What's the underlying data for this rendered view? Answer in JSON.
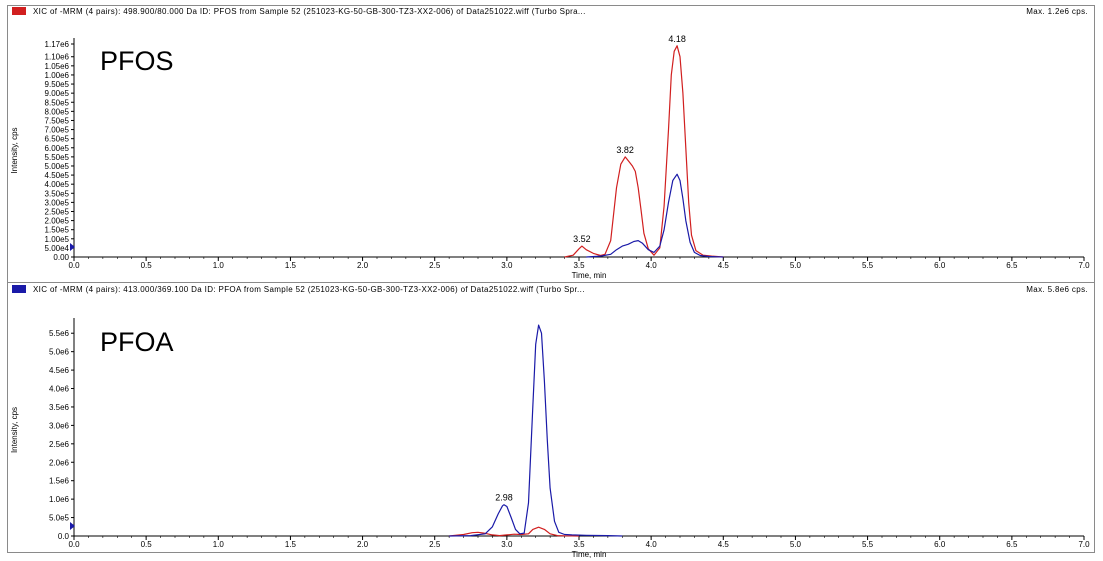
{
  "colors": {
    "red": "#d11f1f",
    "blue": "#1a1aa8",
    "axis": "#000000"
  },
  "chart_data": [
    {
      "type": "line",
      "header": "XIC of -MRM (4 pairs): 498.900/80.000 Da ID: PFOS from Sample 52 (251023-KG-50-GB-300-TZ3-XX2-006) of Data251022.wiff (Turbo Spra...",
      "header_color": "#d11f1f",
      "max_label": "Max. 1.2e6 cps.",
      "title": "PFOS",
      "xlabel": "Time, min",
      "ylabel": "Intensity, cps",
      "xlim": [
        0.0,
        7.0
      ],
      "ylim": [
        0,
        1170000
      ],
      "x_ticks": [
        "0.0",
        "0.5",
        "1.0",
        "1.5",
        "2.0",
        "2.5",
        "3.0",
        "3.5",
        "4.0",
        "4.5",
        "5.0",
        "5.5",
        "6.0",
        "6.5",
        "7.0"
      ],
      "y_ticks": [
        "0.00",
        "5.00e4",
        "1.00e5",
        "1.50e5",
        "2.00e5",
        "2.50e5",
        "3.00e5",
        "3.50e5",
        "4.00e5",
        "4.50e5",
        "5.00e5",
        "5.50e5",
        "6.00e5",
        "6.50e5",
        "7.00e5",
        "7.50e5",
        "8.00e5",
        "8.50e5",
        "9.00e5",
        "9.50e5",
        "1.00e6",
        "1.05e6",
        "1.10e6",
        "1.17e6"
      ],
      "y_tick_values": [
        0,
        50000,
        100000,
        150000,
        200000,
        250000,
        300000,
        350000,
        400000,
        450000,
        500000,
        550000,
        600000,
        650000,
        700000,
        750000,
        800000,
        850000,
        900000,
        950000,
        1000000,
        1050000,
        1100000,
        1170000
      ],
      "series": [
        {
          "color": "#d11f1f",
          "x": [
            3.4,
            3.46,
            3.5,
            3.52,
            3.55,
            3.6,
            3.65,
            3.68,
            3.72,
            3.76,
            3.79,
            3.82,
            3.85,
            3.87,
            3.89,
            3.91,
            3.93,
            3.95,
            3.98,
            4.02,
            4.06,
            4.09,
            4.12,
            4.14,
            4.16,
            4.18,
            4.2,
            4.22,
            4.24,
            4.26,
            4.28,
            4.31,
            4.36,
            4.42,
            4.5
          ],
          "y": [
            0,
            10000,
            45000,
            60000,
            40000,
            20000,
            8000,
            15000,
            90000,
            380000,
            510000,
            550000,
            520000,
            500000,
            470000,
            380000,
            260000,
            130000,
            45000,
            10000,
            50000,
            280000,
            700000,
            1000000,
            1130000,
            1160000,
            1100000,
            900000,
            600000,
            300000,
            120000,
            35000,
            10000,
            5000,
            0
          ]
        },
        {
          "color": "#1a1aa8",
          "x": [
            3.55,
            3.65,
            3.72,
            3.76,
            3.8,
            3.84,
            3.88,
            3.91,
            3.94,
            3.98,
            4.02,
            4.06,
            4.09,
            4.12,
            4.15,
            4.18,
            4.2,
            4.22,
            4.24,
            4.27,
            4.3,
            4.34,
            4.4,
            4.46,
            4.5
          ],
          "y": [
            0,
            5000,
            15000,
            40000,
            60000,
            70000,
            85000,
            90000,
            75000,
            40000,
            25000,
            60000,
            150000,
            300000,
            420000,
            455000,
            420000,
            320000,
            200000,
            80000,
            25000,
            8000,
            3000,
            1000,
            0
          ]
        }
      ],
      "annotations": [
        {
          "text": "3.52",
          "x": 3.52,
          "y": 60000
        },
        {
          "text": "3.82",
          "x": 3.82,
          "y": 550000
        },
        {
          "text": "4.18",
          "x": 4.18,
          "y": 1160000
        }
      ]
    },
    {
      "type": "line",
      "header": "XIC of -MRM (4 pairs): 413.000/369.100 Da ID: PFOA from Sample 52 (251023-KG-50-GB-300-TZ3-XX2-006) of Data251022.wiff (Turbo Spr...",
      "header_color": "#1a1aa8",
      "max_label": "Max. 5.8e6 cps.",
      "title": "PFOA",
      "xlabel": "Time, min",
      "ylabel": "Intensity, cps",
      "xlim": [
        0.0,
        7.0
      ],
      "ylim": [
        0,
        5750000
      ],
      "x_ticks": [
        "0.0",
        "0.5",
        "1.0",
        "1.5",
        "2.0",
        "2.5",
        "3.0",
        "3.5",
        "4.0",
        "4.5",
        "5.0",
        "5.5",
        "6.0",
        "6.5",
        "7.0"
      ],
      "y_ticks": [
        "0.0",
        "5.0e5",
        "1.0e6",
        "1.5e6",
        "2.0e6",
        "2.5e6",
        "3.0e6",
        "3.5e6",
        "4.0e6",
        "4.5e6",
        "5.0e6",
        "5.5e6"
      ],
      "y_tick_values": [
        0,
        500000,
        1000000,
        1500000,
        2000000,
        2500000,
        3000000,
        3500000,
        4000000,
        4500000,
        5000000,
        5500000
      ],
      "series": [
        {
          "color": "#d11f1f",
          "x": [
            2.6,
            2.7,
            2.76,
            2.8,
            2.84,
            2.9,
            2.95,
            3.0,
            3.05,
            3.1,
            3.15,
            3.18,
            3.22,
            3.26,
            3.3,
            3.35,
            3.4,
            3.5
          ],
          "y": [
            0,
            40000,
            90000,
            100000,
            80000,
            30000,
            10000,
            30000,
            50000,
            40000,
            60000,
            180000,
            240000,
            180000,
            60000,
            10000,
            5000,
            0
          ]
        },
        {
          "color": "#1a1aa8",
          "x": [
            2.6,
            2.75,
            2.85,
            2.9,
            2.94,
            2.97,
            2.98,
            3.0,
            3.03,
            3.06,
            3.09,
            3.12,
            3.15,
            3.18,
            3.2,
            3.22,
            3.24,
            3.26,
            3.28,
            3.3,
            3.33,
            3.36,
            3.4,
            3.45,
            3.55,
            3.7,
            3.8
          ],
          "y": [
            0,
            10000,
            60000,
            250000,
            600000,
            820000,
            850000,
            800000,
            500000,
            180000,
            60000,
            80000,
            900000,
            3500000,
            5200000,
            5720000,
            5500000,
            4200000,
            2600000,
            1300000,
            400000,
            100000,
            40000,
            30000,
            20000,
            10000,
            0
          ]
        }
      ],
      "annotations": [
        {
          "text": "2.98",
          "x": 2.98,
          "y": 850000
        }
      ]
    }
  ]
}
